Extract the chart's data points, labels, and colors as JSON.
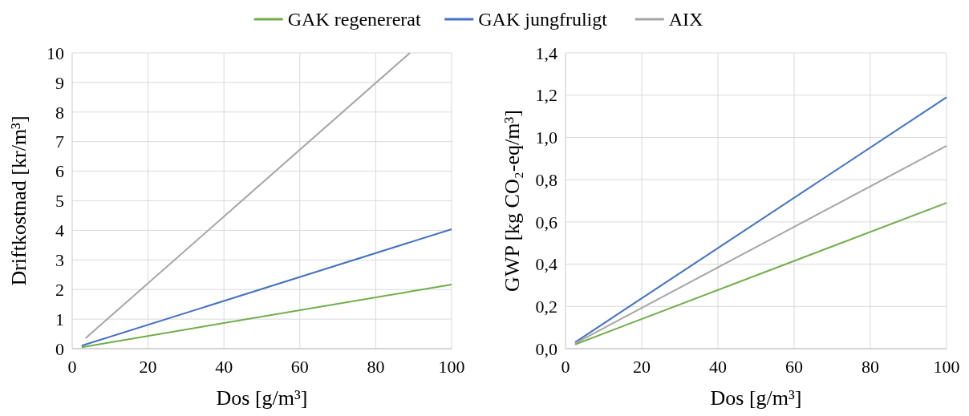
{
  "chart_data": [
    {
      "type": "line",
      "xlabel": "Dos [g/m³]",
      "ylabel": "Driftkostnad [kr/m³]",
      "xlim": [
        0,
        100
      ],
      "xticks": [
        0,
        20,
        40,
        60,
        80,
        100
      ],
      "ylim": [
        0,
        10
      ],
      "yticks": [
        0,
        1,
        2,
        3,
        4,
        5,
        6,
        7,
        8,
        9,
        10
      ],
      "grid": true,
      "legend": "top",
      "series": [
        {
          "name": "GAK regenererat",
          "color": "#70ad47",
          "x": [
            2.5,
            100
          ],
          "values": [
            0.05,
            2.17
          ]
        },
        {
          "name": "GAK jungfruligt",
          "color": "#4472c4",
          "x": [
            2.5,
            100
          ],
          "values": [
            0.1,
            4.04
          ]
        },
        {
          "name": "AIX",
          "color": "#a5a5a5",
          "x": [
            3.5,
            89
          ],
          "values": [
            0.35,
            10
          ]
        }
      ]
    },
    {
      "type": "line",
      "xlabel": "Dos [g/m³]",
      "ylabel": "GWP [kg CO₂-eq/m³]",
      "xlim": [
        0,
        100
      ],
      "xticks": [
        0,
        20,
        40,
        60,
        80,
        100
      ],
      "ylim": [
        0,
        1.4
      ],
      "yticks": [
        {
          "value": 0,
          "label": "0,0"
        },
        {
          "value": 0.2,
          "label": "0,2"
        },
        {
          "value": 0.4,
          "label": "0,4"
        },
        {
          "value": 0.6,
          "label": "0,6"
        },
        {
          "value": 0.8,
          "label": "0,8"
        },
        {
          "value": 1,
          "label": "1,0"
        },
        {
          "value": 1.2,
          "label": "1,2"
        },
        {
          "value": 1.4,
          "label": "1,4"
        }
      ],
      "grid": true,
      "series": [
        {
          "color": "#70ad47",
          "x": [
            2.5,
            100
          ],
          "values": [
            0.02,
            0.69
          ]
        },
        {
          "color": "#4472c4",
          "x": [
            2.5,
            100
          ],
          "values": [
            0.03,
            1.19
          ]
        },
        {
          "color": "#a5a5a5",
          "x": [
            2.5,
            100
          ],
          "values": [
            0.025,
            0.96
          ]
        }
      ]
    }
  ]
}
